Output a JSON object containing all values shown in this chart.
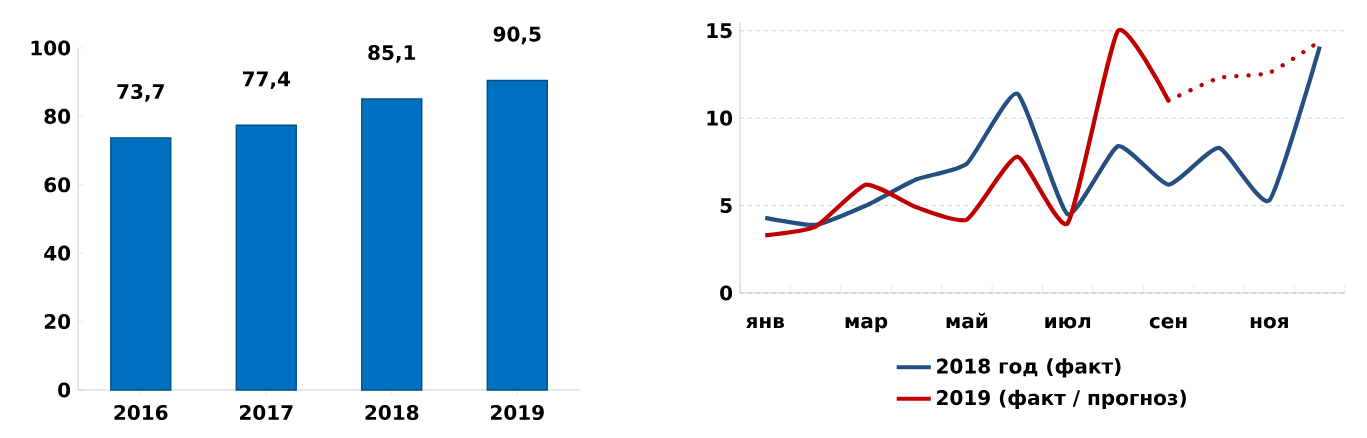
{
  "chart_data": [
    {
      "type": "bar",
      "categories": [
        "2016",
        "2017",
        "2018",
        "2019"
      ],
      "values": [
        73.7,
        77.4,
        85.1,
        90.5
      ],
      "value_labels": [
        "73,7",
        "77,4",
        "85,1",
        "90,5"
      ],
      "color": "#0070c0",
      "ylim": [
        0,
        100
      ],
      "yticks": [
        0,
        20,
        40,
        60,
        80,
        100
      ]
    },
    {
      "type": "line",
      "categories": [
        "янв",
        null,
        "мар",
        null,
        "май",
        null,
        "июл",
        null,
        "сен",
        null,
        "ноя",
        null
      ],
      "series": [
        {
          "name": "2018 год (факт)",
          "color": "#254f81",
          "values": [
            4.3,
            3.9,
            5.0,
            6.5,
            7.4,
            11.4,
            4.5,
            8.4,
            6.2,
            8.3,
            5.3,
            14.1
          ]
        },
        {
          "name": "2019 (факт / прогноз)",
          "color": "#c00000",
          "values": [
            3.3,
            3.8,
            6.2,
            4.9,
            4.2,
            7.8,
            4.0,
            15.0,
            11.0,
            null,
            null,
            null
          ]
        },
        {
          "color": "#c00000",
          "line_style": "dotted",
          "values": [
            null,
            null,
            null,
            null,
            null,
            null,
            null,
            null,
            11.0,
            12.3,
            12.6,
            14.4
          ]
        }
      ],
      "ylim": [
        0,
        15.5
      ],
      "yticks": [
        0,
        5,
        10,
        15
      ],
      "grid": "y",
      "legend": "bottom"
    }
  ]
}
